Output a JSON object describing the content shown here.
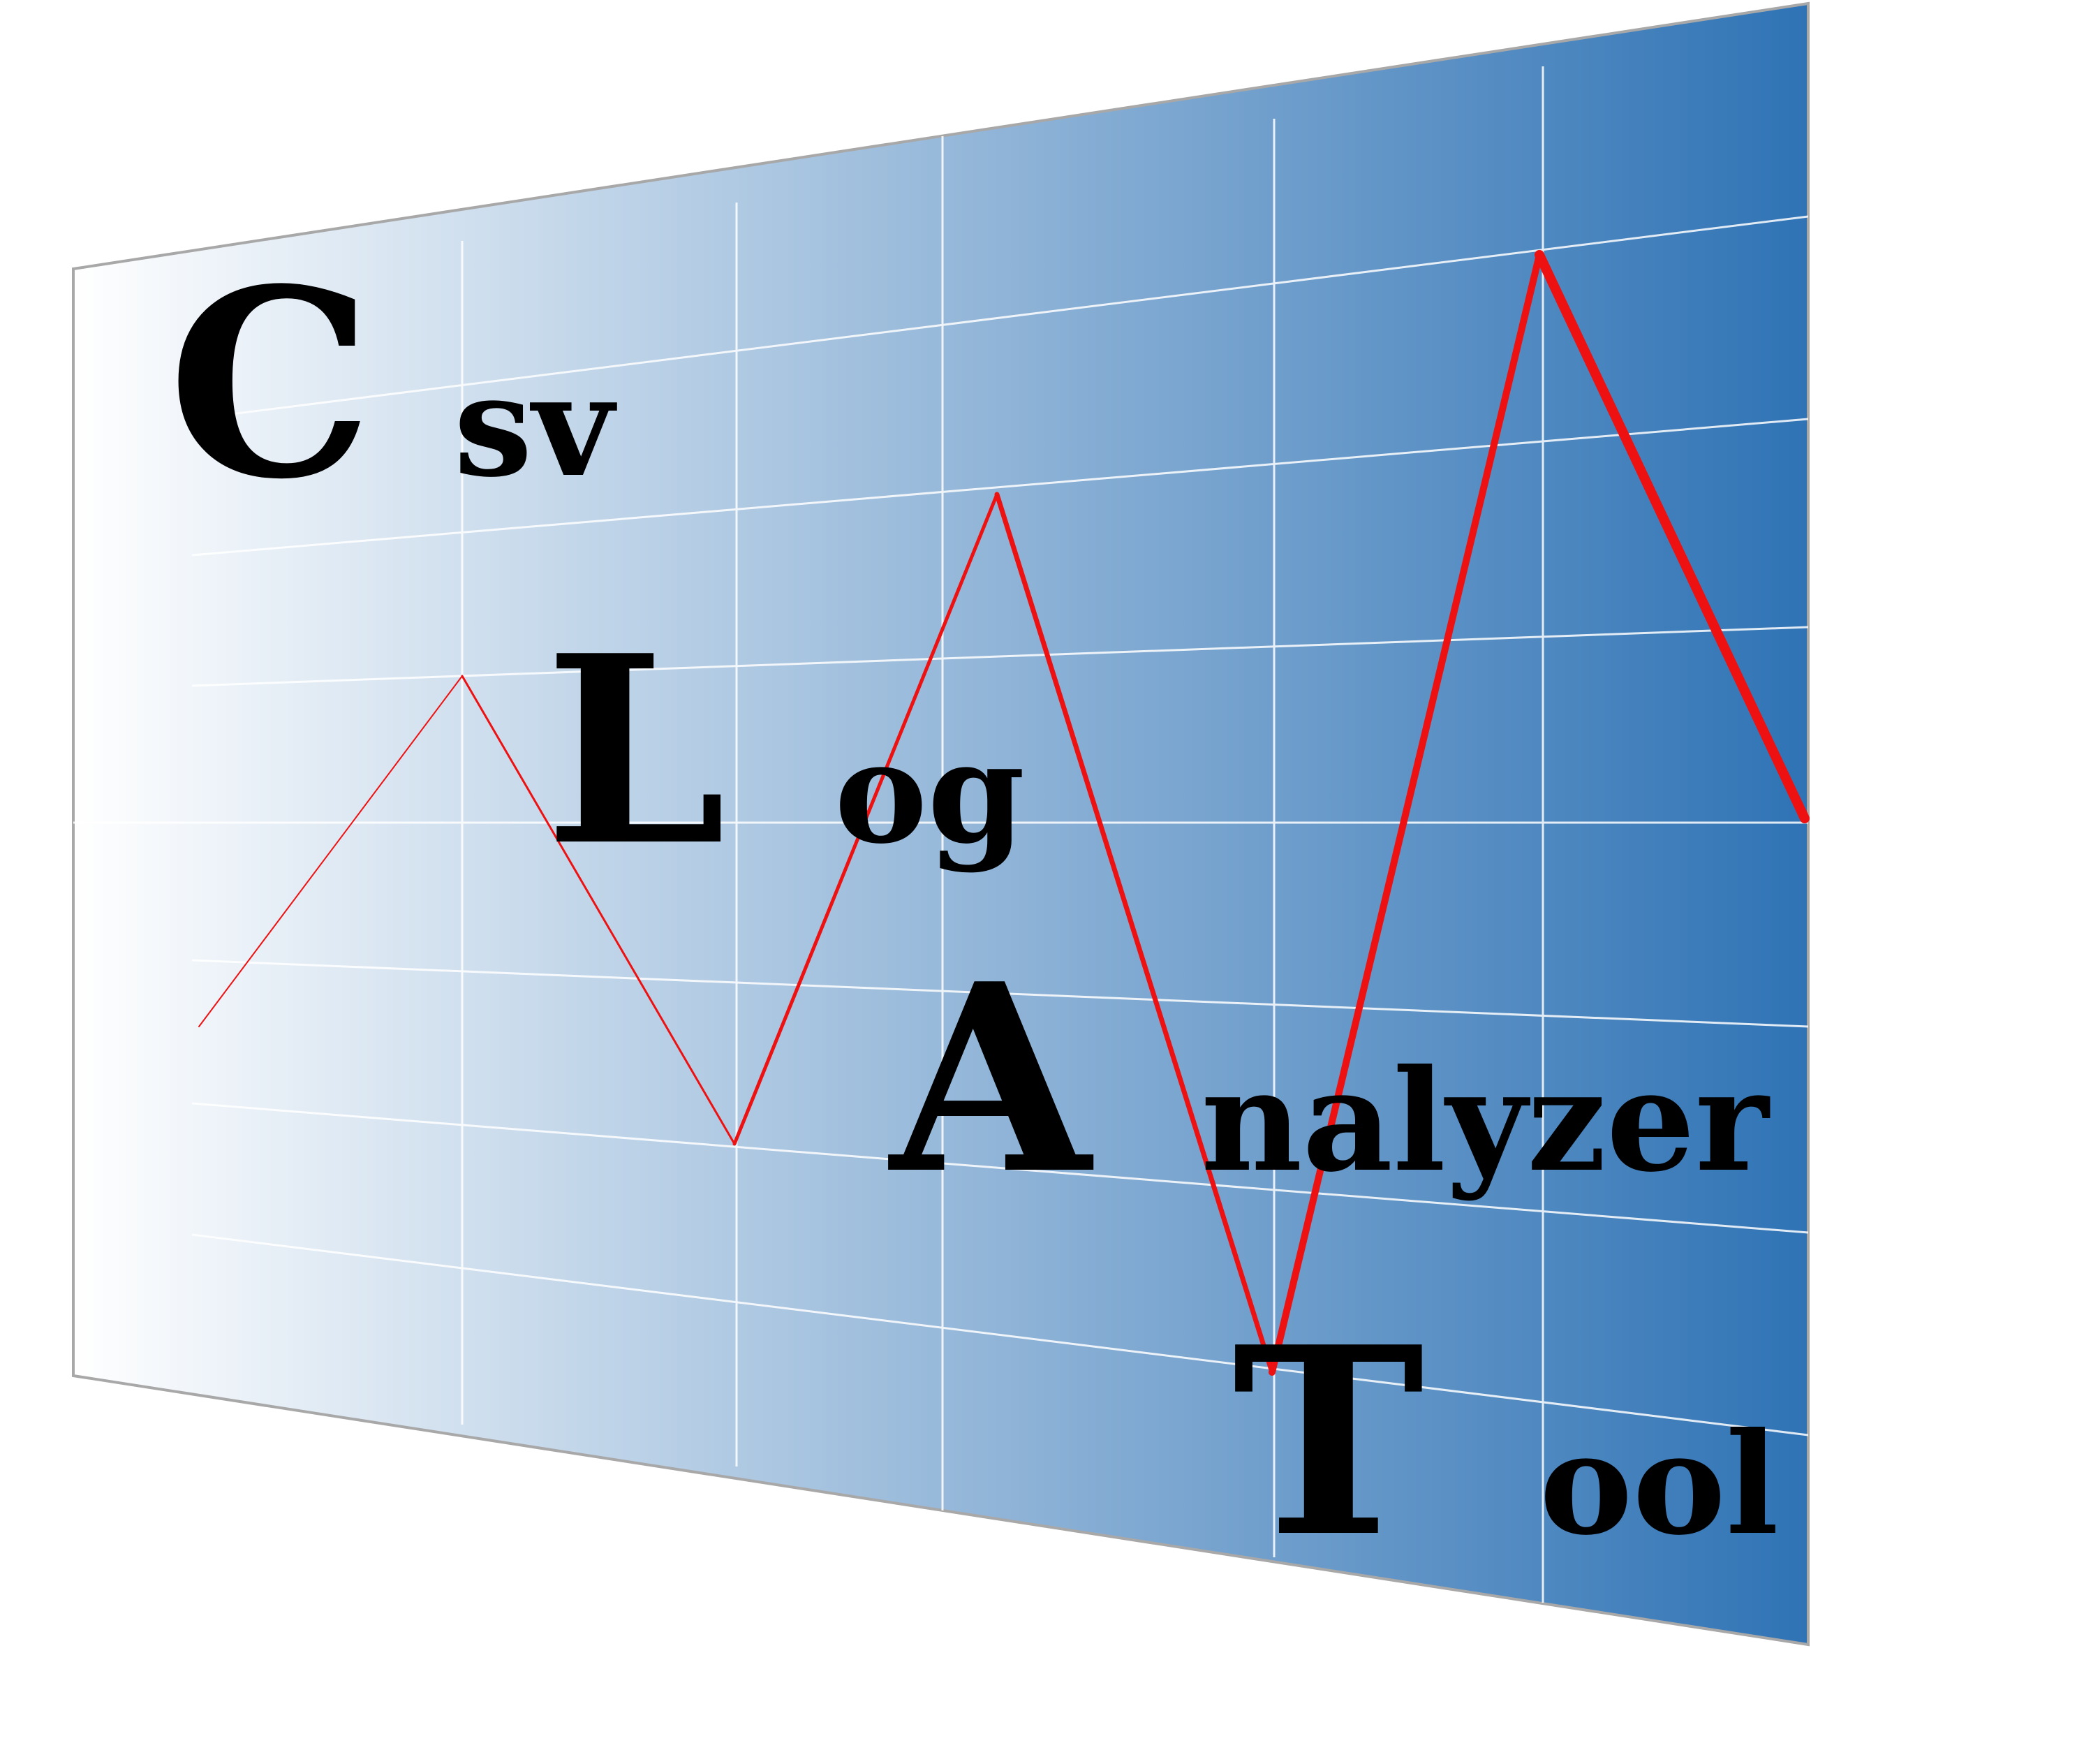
{
  "logo": {
    "words": [
      {
        "initial": "C",
        "rest": "sv"
      },
      {
        "initial": "L",
        "rest": "og"
      },
      {
        "initial": "A",
        "rest": "nalyzer"
      },
      {
        "initial": "T",
        "rest": "ool"
      }
    ]
  },
  "colors": {
    "gradient_start": "#ffffff",
    "gradient_end": "#2f73b5",
    "grid": "#ffffff",
    "frame": "#a8a8a8",
    "zigzag_line": "#ee1111",
    "text": "#000000"
  }
}
